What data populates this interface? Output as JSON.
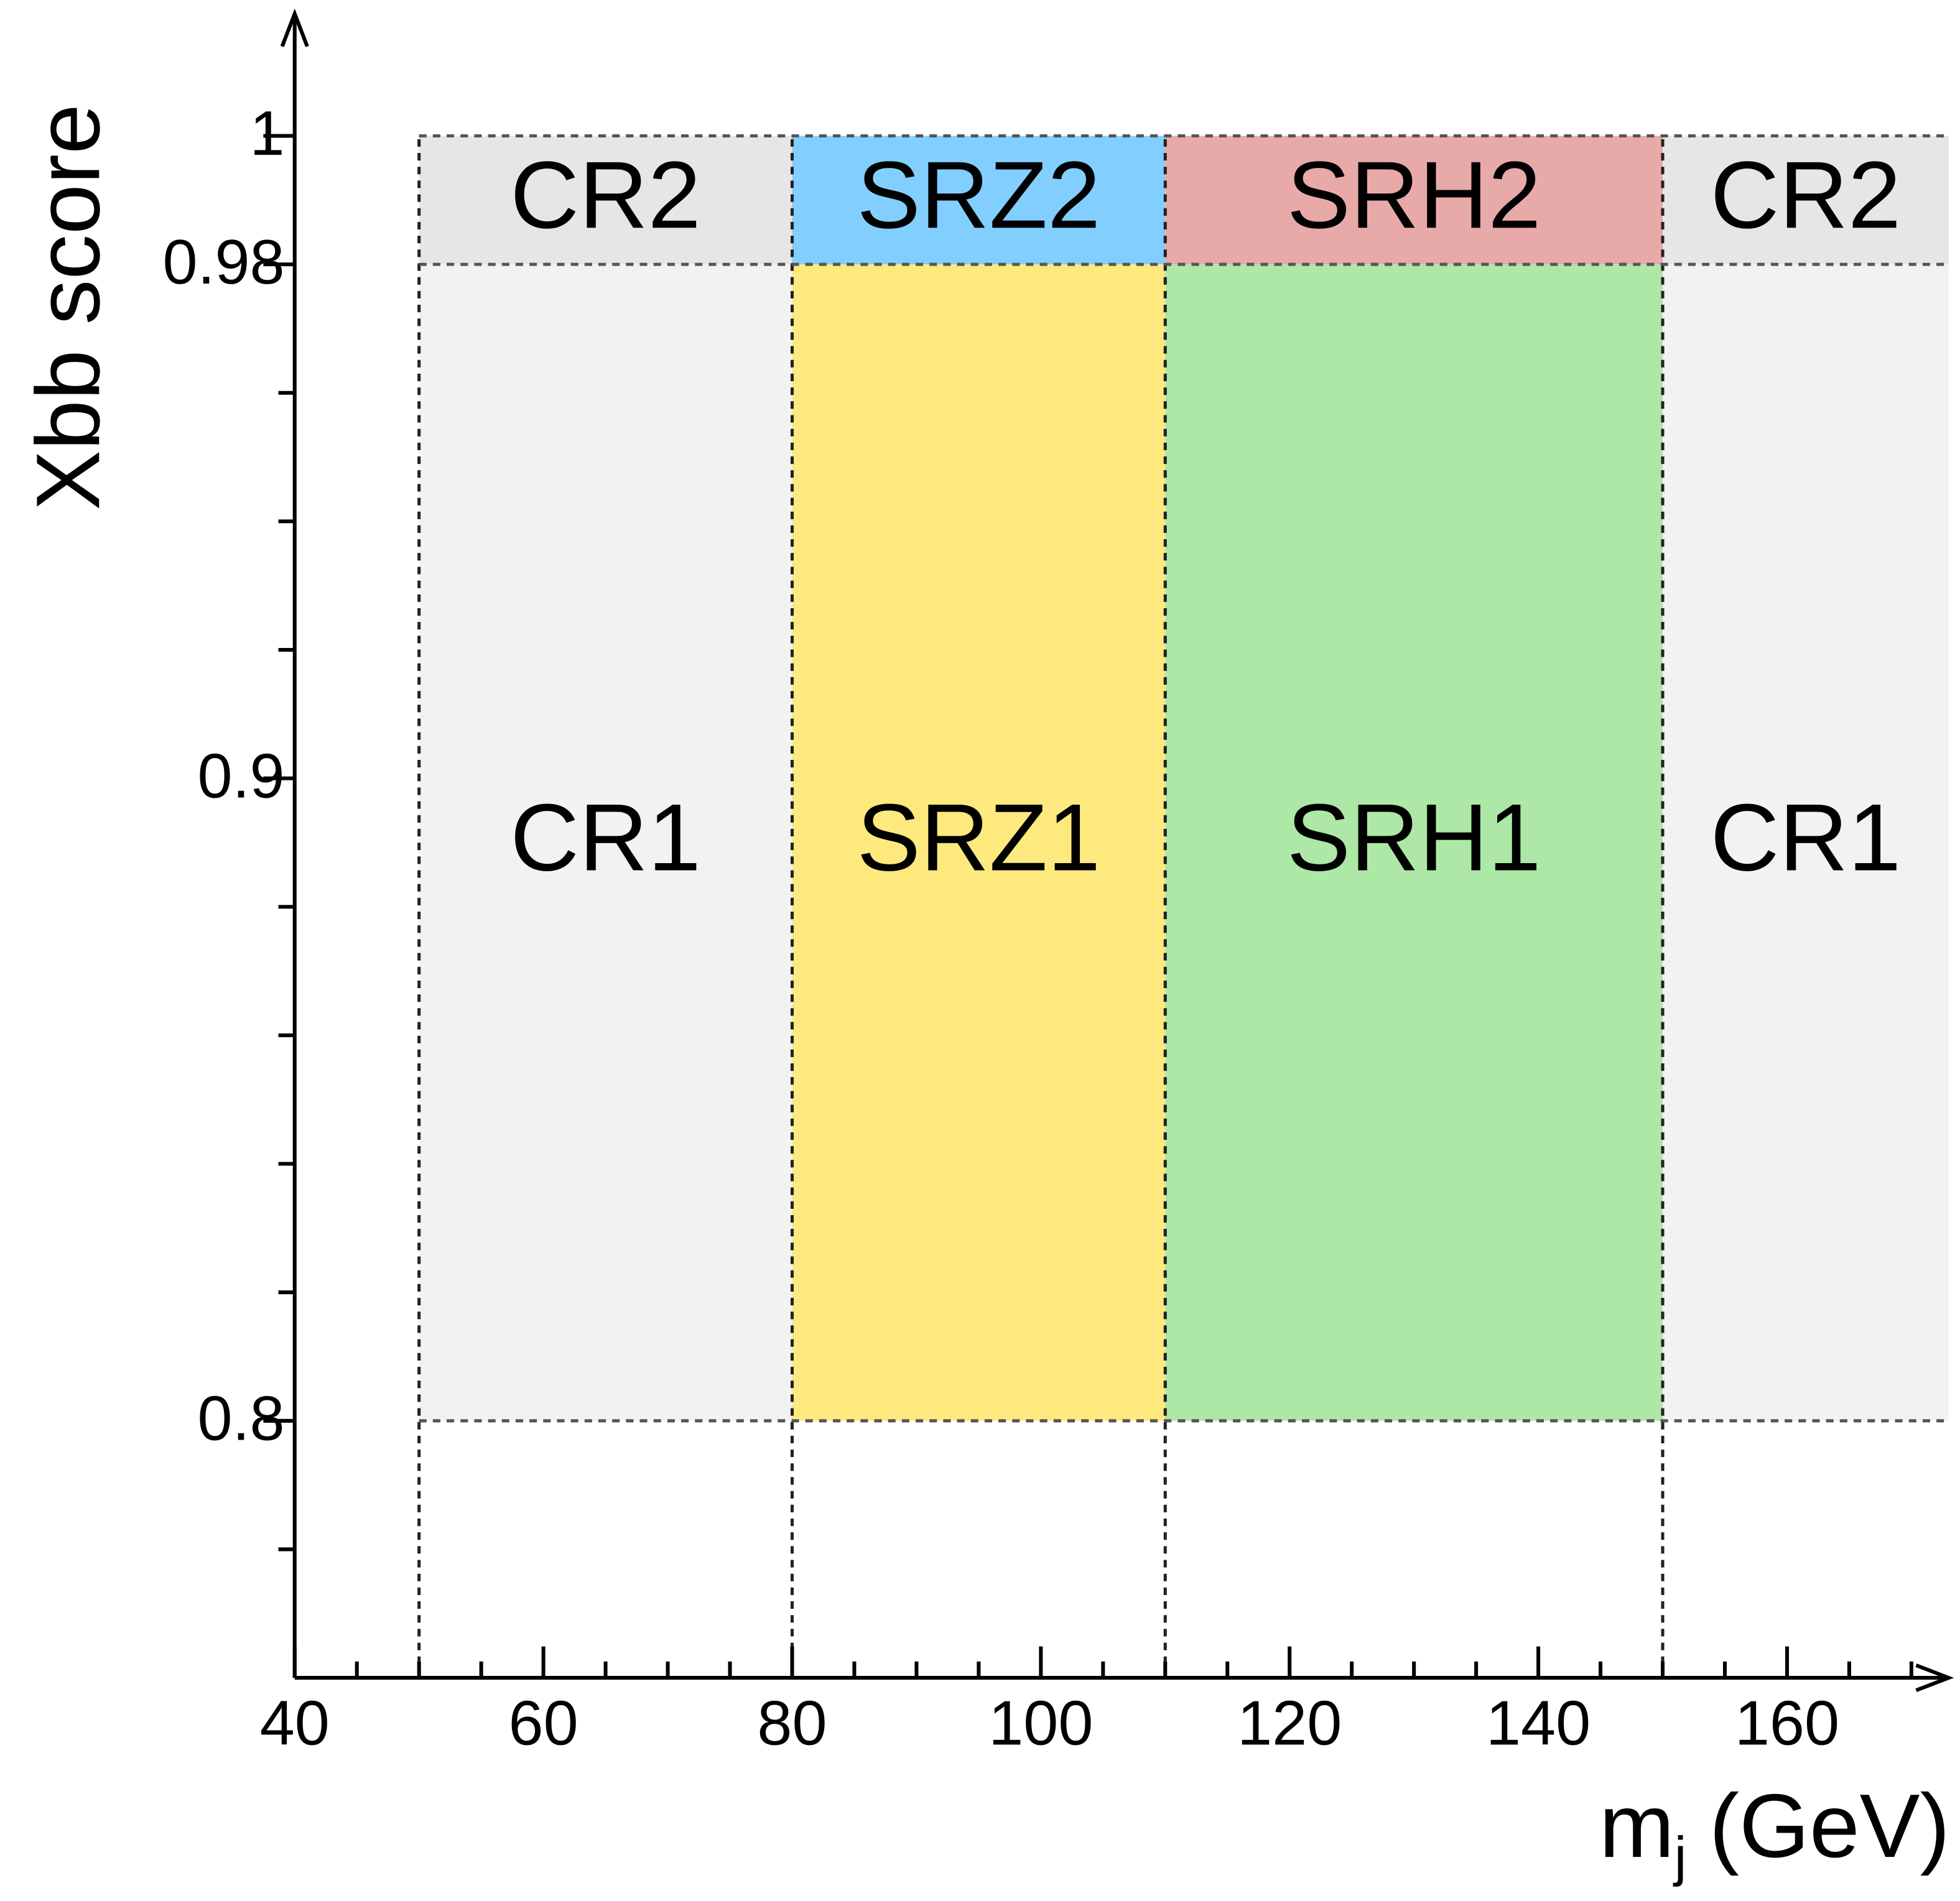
{
  "chart_data": {
    "type": "region",
    "xlabel": "m",
    "xlabel_sub": "j",
    "xlabel_unit": "(GeV)",
    "ylabel": "Xbb score",
    "xlim": [
      40,
      173
    ],
    "ylim": [
      0.76,
      1.019
    ],
    "xticks": [
      40,
      60,
      80,
      100,
      120,
      140,
      160
    ],
    "xminor": [
      45,
      50,
      55,
      65,
      70,
      75,
      85,
      90,
      95,
      105,
      110,
      115,
      125,
      130,
      135,
      145,
      150,
      155,
      165,
      170
    ],
    "yticks": [
      0.8,
      0.9,
      0.98,
      1
    ],
    "yminor": [
      0.78,
      0.82,
      0.84,
      0.86,
      0.88,
      0.92,
      0.94,
      0.96
    ],
    "cuts_x": [
      50,
      80,
      110,
      150
    ],
    "cuts_y": [
      0.8,
      0.98,
      1
    ],
    "regions": [
      {
        "label": "CR2",
        "x": [
          50,
          80
        ],
        "y": [
          0.98,
          1
        ],
        "color": "#e6e6e6"
      },
      {
        "label": "SRZ2",
        "x": [
          80,
          110
        ],
        "y": [
          0.98,
          1
        ],
        "color": "#82cfff"
      },
      {
        "label": "SRH2",
        "x": [
          110,
          150
        ],
        "y": [
          0.98,
          1
        ],
        "color": "#e8aaa8"
      },
      {
        "label": "CR2",
        "x": [
          150,
          173
        ],
        "y": [
          0.98,
          1
        ],
        "color": "#e6e6e6"
      },
      {
        "label": "CR1",
        "x": [
          50,
          80
        ],
        "y": [
          0.8,
          0.98
        ],
        "color": "#f2f2f2"
      },
      {
        "label": "SRZ1",
        "x": [
          80,
          110
        ],
        "y": [
          0.8,
          0.98
        ],
        "color": "#fee97f"
      },
      {
        "label": "SRH1",
        "x": [
          110,
          150
        ],
        "y": [
          0.8,
          0.98
        ],
        "color": "#ade8a6"
      },
      {
        "label": "CR1",
        "x": [
          150,
          173
        ],
        "y": [
          0.8,
          0.98
        ],
        "color": "#f2f2f2"
      }
    ]
  }
}
